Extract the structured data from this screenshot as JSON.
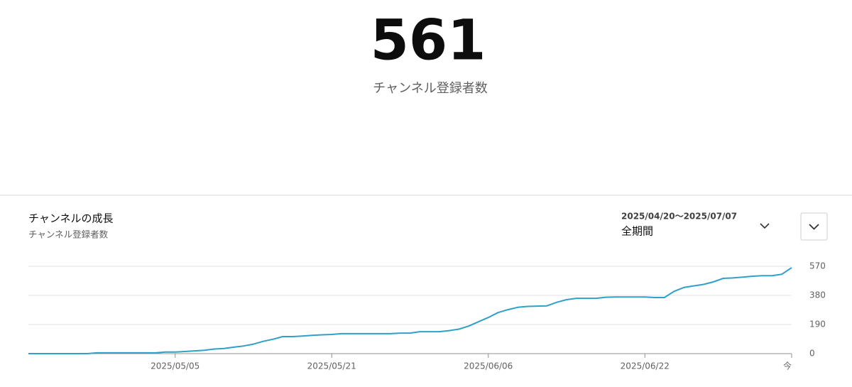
{
  "header": {
    "value": 561,
    "label": "チャンネル登録者数"
  },
  "controls": {
    "date_range": "2025/04/20〜2025/07/07",
    "period": "全期間"
  },
  "chart_data": {
    "type": "line",
    "title": "チャンネルの成長",
    "subtitle": "チャンネル登録者数",
    "x": [
      "2025/04/20",
      "2025/04/21",
      "2025/04/22",
      "2025/04/23",
      "2025/04/24",
      "2025/04/25",
      "2025/04/26",
      "2025/04/27",
      "2025/04/28",
      "2025/04/29",
      "2025/04/30",
      "2025/05/01",
      "2025/05/02",
      "2025/05/03",
      "2025/05/04",
      "2025/05/05",
      "2025/05/06",
      "2025/05/07",
      "2025/05/08",
      "2025/05/09",
      "2025/05/10",
      "2025/05/11",
      "2025/05/12",
      "2025/05/13",
      "2025/05/14",
      "2025/05/15",
      "2025/05/16",
      "2025/05/17",
      "2025/05/18",
      "2025/05/19",
      "2025/05/20",
      "2025/05/21",
      "2025/05/22",
      "2025/05/23",
      "2025/05/24",
      "2025/05/25",
      "2025/05/26",
      "2025/05/27",
      "2025/05/28",
      "2025/05/29",
      "2025/05/30",
      "2025/05/31",
      "2025/06/01",
      "2025/06/02",
      "2025/06/03",
      "2025/06/04",
      "2025/06/05",
      "2025/06/06",
      "2025/06/07",
      "2025/06/08",
      "2025/06/09",
      "2025/06/10",
      "2025/06/11",
      "2025/06/12",
      "2025/06/13",
      "2025/06/14",
      "2025/06/15",
      "2025/06/16",
      "2025/06/17",
      "2025/06/18",
      "2025/06/19",
      "2025/06/20",
      "2025/06/21",
      "2025/06/22",
      "2025/06/23",
      "2025/06/24",
      "2025/06/25",
      "2025/06/26",
      "2025/06/27",
      "2025/06/28",
      "2025/06/29",
      "2025/06/30",
      "2025/07/01",
      "2025/07/02",
      "2025/07/03",
      "2025/07/04",
      "2025/07/05",
      "2025/07/06",
      "2025/07/07"
    ],
    "values": [
      0,
      0,
      0,
      0,
      0,
      0,
      0,
      5,
      5,
      5,
      5,
      5,
      5,
      5,
      10,
      10,
      14,
      18,
      22,
      30,
      34,
      42,
      50,
      62,
      80,
      94,
      111,
      111,
      115,
      119,
      123,
      125,
      130,
      130,
      130,
      130,
      130,
      130,
      134,
      134,
      143,
      143,
      143,
      150,
      160,
      180,
      208,
      236,
      268,
      287,
      302,
      308,
      310,
      312,
      335,
      352,
      361,
      361,
      361,
      368,
      370,
      370,
      370,
      370,
      366,
      366,
      407,
      432,
      442,
      452,
      468,
      491,
      494,
      499,
      505,
      509,
      509,
      518,
      561
    ],
    "color": "#2fa0c9",
    "ylim": [
      0,
      570
    ],
    "yticks": [
      0,
      190,
      380,
      570
    ],
    "grid": true,
    "xticks": [
      "2025/05/05",
      "2025/05/21",
      "2025/06/06",
      "2025/06/22",
      {
        "value": "2025/07/07",
        "label": "今"
      }
    ]
  }
}
